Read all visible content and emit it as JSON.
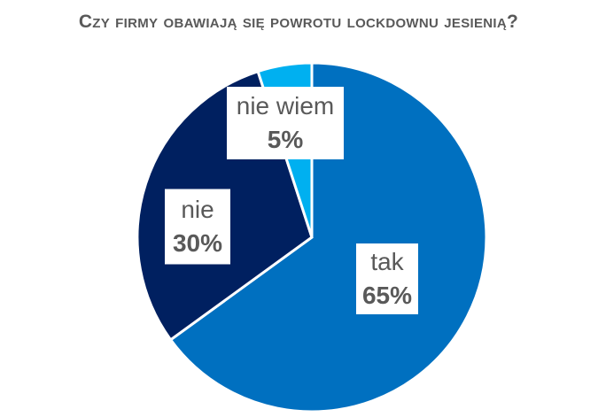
{
  "chart_data": {
    "type": "pie",
    "title": "Czy firmy obawiają się powrotu lockdownu jesienią?",
    "categories": [
      "tak",
      "nie",
      "nie wiem"
    ],
    "values": [
      65,
      30,
      5
    ],
    "value_labels": [
      "65%",
      "30%",
      "5%"
    ],
    "colors": [
      "#0070c0",
      "#002060",
      "#00b0f0"
    ]
  }
}
